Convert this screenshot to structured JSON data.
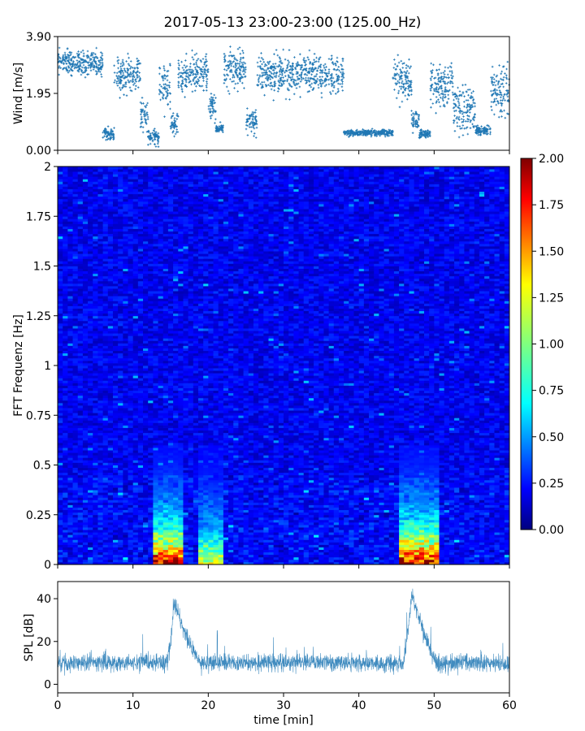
{
  "figure": {
    "title": "2017-05-13 23:00-23:00 (125.00_Hz)"
  },
  "chart_data": [
    {
      "type": "scatter",
      "ylabel": "Wind [m/s]",
      "xlim": [
        0,
        60
      ],
      "ylim": [
        0,
        3.9
      ],
      "yticks": [
        0,
        1.95,
        3.9
      ],
      "ytick_labels": [
        "0.00",
        "1.95",
        "3.90"
      ],
      "xticks": [
        0,
        10,
        20,
        30,
        40,
        50,
        60
      ],
      "marker": "+",
      "color": "#1f77b4",
      "grid": false,
      "segments": [
        {
          "x": [
            0,
            6
          ],
          "center": 3.0,
          "spread": 0.45
        },
        {
          "x": [
            6,
            7.5
          ],
          "center": 0.55,
          "spread": 0.2
        },
        {
          "x": [
            7.5,
            11
          ],
          "center": 2.6,
          "spread": 0.6
        },
        {
          "x": [
            11,
            12
          ],
          "center": 1.3,
          "spread": 0.6
        },
        {
          "x": [
            12,
            13.5
          ],
          "center": 0.45,
          "spread": 0.25
        },
        {
          "x": [
            13.5,
            15
          ],
          "center": 2.2,
          "spread": 0.8
        },
        {
          "x": [
            15,
            16
          ],
          "center": 0.9,
          "spread": 0.4
        },
        {
          "x": [
            16,
            20
          ],
          "center": 2.6,
          "spread": 0.6
        },
        {
          "x": [
            20,
            21
          ],
          "center": 1.5,
          "spread": 0.5
        },
        {
          "x": [
            21,
            22
          ],
          "center": 0.75,
          "spread": 0.15
        },
        {
          "x": [
            22,
            25
          ],
          "center": 2.8,
          "spread": 0.65
        },
        {
          "x": [
            25,
            26.5
          ],
          "center": 1.0,
          "spread": 0.4
        },
        {
          "x": [
            26.5,
            38
          ],
          "center": 2.6,
          "spread": 0.6
        },
        {
          "x": [
            38,
            44.5
          ],
          "center": 0.6,
          "spread": 0.1
        },
        {
          "x": [
            44.5,
            47
          ],
          "center": 2.4,
          "spread": 0.7
        },
        {
          "x": [
            47,
            48
          ],
          "center": 1.0,
          "spread": 0.3
        },
        {
          "x": [
            48,
            49.5
          ],
          "center": 0.55,
          "spread": 0.15
        },
        {
          "x": [
            49.5,
            52.5
          ],
          "center": 2.3,
          "spread": 0.7
        },
        {
          "x": [
            52.5,
            55.5
          ],
          "center": 1.4,
          "spread": 0.7
        },
        {
          "x": [
            55.5,
            57.5
          ],
          "center": 0.7,
          "spread": 0.15
        },
        {
          "x": [
            57.5,
            60
          ],
          "center": 2.0,
          "spread": 0.8
        }
      ]
    },
    {
      "type": "heatmap",
      "ylabel": "FFT Frequenz [Hz]",
      "xlim": [
        0,
        60
      ],
      "ylim": [
        0,
        2
      ],
      "yticks": [
        0,
        0.25,
        0.5,
        0.75,
        1,
        1.25,
        1.5,
        1.75,
        2
      ],
      "ytick_labels": [
        "0",
        "0.25",
        "0.5",
        "0.75",
        "1",
        "1.25",
        "1.5",
        "1.75",
        "2"
      ],
      "colormap": "jet",
      "clim": [
        0,
        2
      ],
      "colorbar": {
        "ticks": [
          0,
          0.25,
          0.5,
          0.75,
          1,
          1.25,
          1.5,
          1.75,
          2
        ],
        "tick_labels": [
          "0.00",
          "0.25",
          "0.50",
          "0.75",
          "1.00",
          "1.25",
          "1.50",
          "1.75",
          "2.00"
        ],
        "placement": "right"
      },
      "background_level": 0.22,
      "hot_regions": [
        {
          "x": [
            12.5,
            16.5
          ],
          "peak": 2.0,
          "extent_hz": 0.6
        },
        {
          "x": [
            18.8,
            21.7
          ],
          "peak": 1.2,
          "extent_hz": 0.6
        },
        {
          "x": [
            45.5,
            50.5
          ],
          "peak": 2.0,
          "extent_hz": 0.6
        }
      ]
    },
    {
      "type": "line",
      "ylabel": "SPL [dB]",
      "xlabel": "time [min]",
      "xlim": [
        0,
        60
      ],
      "ylim": [
        -4,
        48
      ],
      "yticks": [
        0,
        20,
        40
      ],
      "ytick_labels": [
        "0",
        "20",
        "40"
      ],
      "xticks": [
        0,
        10,
        20,
        30,
        40,
        50,
        60
      ],
      "xtick_labels": [
        "0",
        "10",
        "20",
        "30",
        "40",
        "50",
        "60"
      ],
      "color": "#1f77b4",
      "baseline_db": 10,
      "noise_db": 4,
      "peaks": [
        {
          "x": 15.5,
          "db": 38,
          "rise": [
            14.5,
            15.5
          ],
          "fall": [
            15.5,
            19
          ]
        },
        {
          "x": 47,
          "db": 42,
          "rise": [
            45.8,
            47
          ],
          "fall": [
            47,
            50.5
          ]
        }
      ],
      "spikes": [
        {
          "x": 21.2,
          "db": 26
        }
      ]
    }
  ]
}
